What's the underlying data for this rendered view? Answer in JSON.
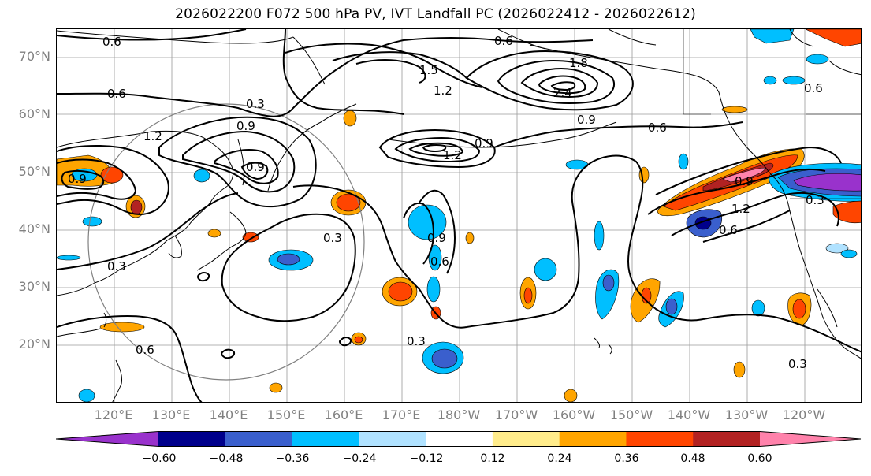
{
  "title": "2026022200 F072 500 hPa PV, IVT Landfall PC (2026022412 - 2026022612)",
  "map": {
    "lat_labels": [
      "70°N",
      "60°N",
      "50°N",
      "40°N",
      "30°N",
      "20°N"
    ],
    "lon_labels": [
      "120°E",
      "130°E",
      "140°E",
      "150°E",
      "160°E",
      "170°E",
      "180°W",
      "170°W",
      "160°W",
      "150°W",
      "140°W",
      "130°W",
      "120°W"
    ],
    "contour_labels": [
      "0.6",
      "0.6",
      "0.6",
      "0.6",
      "0.3",
      "1.2",
      "0.9",
      "1.5",
      "1.2",
      "1.8",
      "2.4",
      "0.9",
      "1.2",
      "0.9",
      "0.6",
      "0.9",
      "0.6",
      "0.3",
      "0.3",
      "0.3",
      "0.3",
      "0.9",
      "1.2",
      "0.6",
      "0.3",
      "0.6",
      "0.9",
      "0.9"
    ],
    "colors": {
      "contour": "#000000",
      "grid": "#9a9a9a",
      "coast": "#000000",
      "circle": "#808080"
    }
  },
  "colorbar": {
    "ticks": [
      "−0.60",
      "−0.48",
      "−0.36",
      "−0.24",
      "−0.12",
      "0.12",
      "0.24",
      "0.36",
      "0.48",
      "0.60"
    ],
    "colors": [
      "#9932cc",
      "#00008b",
      "#3a5fcd",
      "#00bfff",
      "#b0e2ff",
      "#ffffff",
      "#ffec8b",
      "#ffa500",
      "#ff4500",
      "#b22222",
      "#ff82ab"
    ]
  }
}
